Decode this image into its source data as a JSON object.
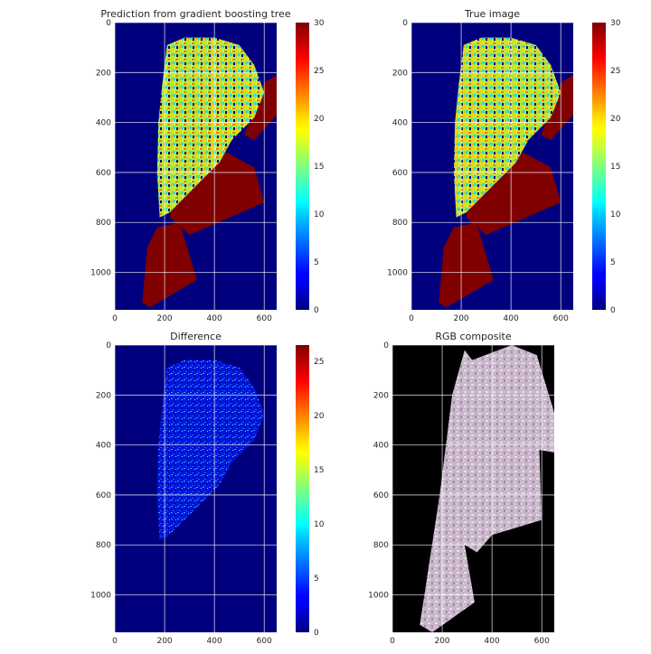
{
  "figure": {
    "panels": [
      {
        "id": "pred",
        "title": "Prediction from gradient boosting tree"
      },
      {
        "id": "true",
        "title": "True image"
      },
      {
        "id": "diff",
        "title": "Difference"
      },
      {
        "id": "rgb",
        "title": "RGB composite"
      }
    ]
  },
  "chart_data": [
    {
      "type": "heatmap",
      "title": "Prediction from gradient boosting tree",
      "colormap": "jet",
      "xlim": [
        0,
        650
      ],
      "ylim": [
        1150,
        0
      ],
      "x_ticks": [
        0,
        200,
        400,
        600
      ],
      "y_ticks": [
        0,
        200,
        400,
        600,
        800,
        1000
      ],
      "colorbar": {
        "min": 0,
        "max": 30,
        "ticks": [
          0,
          5,
          10,
          15,
          20,
          25,
          30
        ]
      },
      "grid": true
    },
    {
      "type": "heatmap",
      "title": "True image",
      "colormap": "jet",
      "xlim": [
        0,
        650
      ],
      "ylim": [
        1150,
        0
      ],
      "x_ticks": [
        0,
        200,
        400,
        600
      ],
      "y_ticks": [
        0,
        200,
        400,
        600,
        800,
        1000
      ],
      "colorbar": {
        "min": 0,
        "max": 30,
        "ticks": [
          0,
          5,
          10,
          15,
          20,
          25,
          30
        ]
      },
      "grid": true
    },
    {
      "type": "heatmap",
      "title": "Difference",
      "colormap": "jet",
      "xlim": [
        0,
        650
      ],
      "ylim": [
        1150,
        0
      ],
      "x_ticks": [
        0,
        200,
        400,
        600
      ],
      "y_ticks": [
        0,
        200,
        400,
        600,
        800,
        1000
      ],
      "colorbar": {
        "min": 0,
        "max": 26.5,
        "ticks": [
          0,
          5,
          10,
          15,
          20,
          25
        ]
      },
      "grid": true
    },
    {
      "type": "image",
      "title": "RGB composite",
      "xlim": [
        0,
        650
      ],
      "ylim": [
        1150,
        0
      ],
      "x_ticks": [
        0,
        200,
        400,
        600
      ],
      "y_ticks": [
        0,
        200,
        400,
        600,
        800,
        1000
      ],
      "grid": true
    }
  ]
}
